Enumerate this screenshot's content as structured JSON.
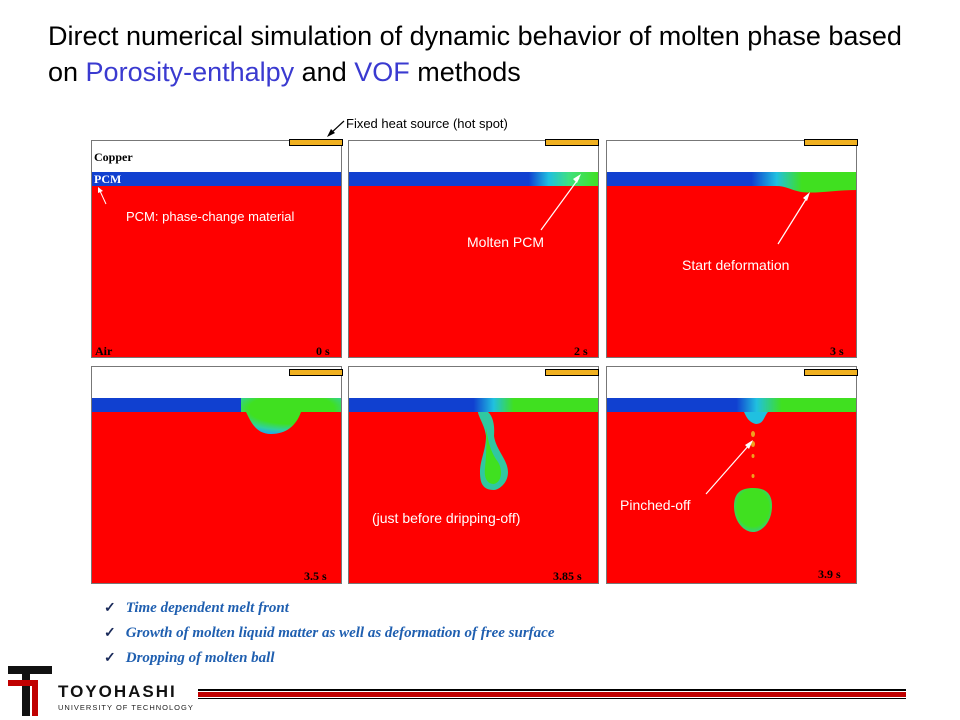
{
  "title": {
    "part1": "Direct numerical simulation of dynamic behavior of molten phase based on ",
    "highlight1": "Porosity-enthalpy",
    "part2": " and ",
    "highlight2": "VOF",
    "part3": " methods"
  },
  "colors": {
    "accent": "#3a3ad0",
    "air": "#ff0000",
    "pcm": "#1040d0",
    "molten": "#40e020",
    "heat_source": "#f0b020"
  },
  "annotations": {
    "heat_source": "Fixed heat source (hot spot)",
    "copper": "Copper",
    "pcm": "PCM",
    "pcm_def": "PCM: phase-change material",
    "air": "Air",
    "molten": "Molten PCM",
    "deformation": "Start deformation",
    "dripping": "(just before dripping-off)",
    "pinched": "Pinched-off"
  },
  "panels": [
    {
      "time": "0 s"
    },
    {
      "time": "2 s"
    },
    {
      "time": "3 s"
    },
    {
      "time": "3.5 s"
    },
    {
      "time": "3.85 s"
    },
    {
      "time": "3.9 s"
    }
  ],
  "bullets": [
    "Time dependent melt front",
    "Growth of molten liquid matter as well as deformation of free surface",
    "Dropping of molten ball"
  ],
  "logo": {
    "name": "TOYOHASHI",
    "sub": "UNIVERSITY OF TECHNOLOGY"
  }
}
